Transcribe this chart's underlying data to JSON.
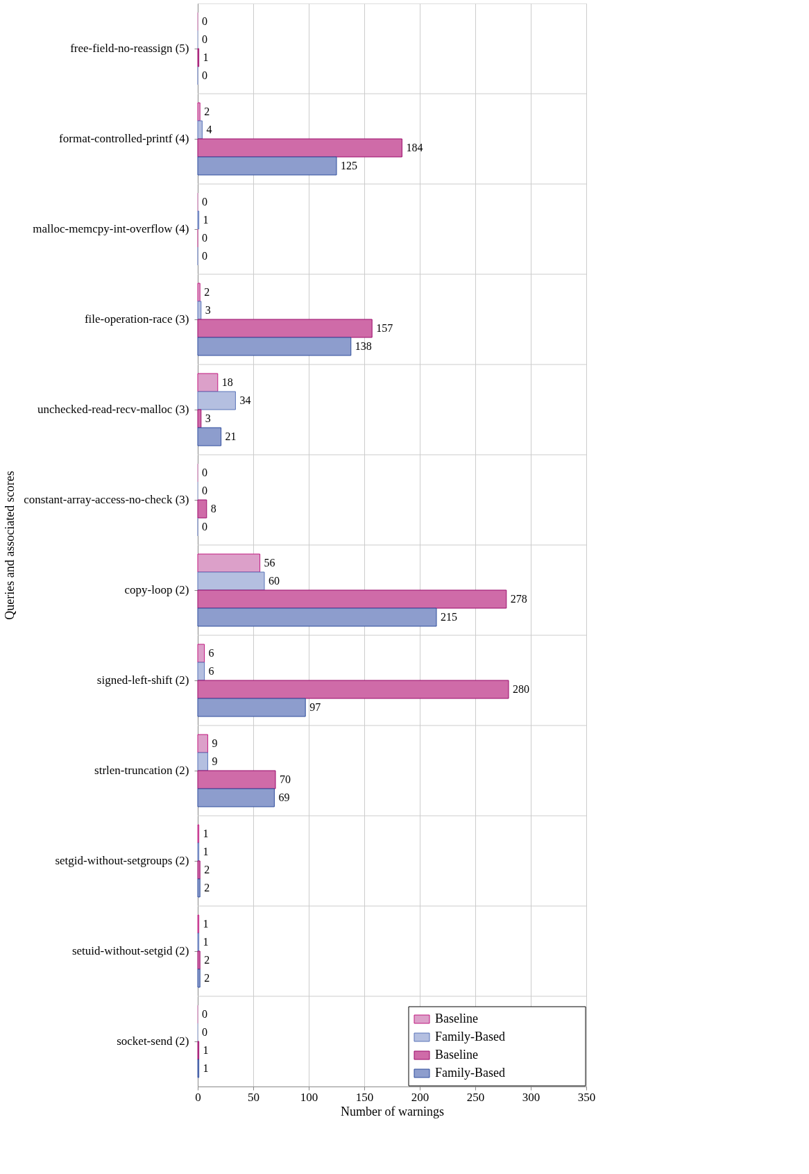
{
  "chart_data": {
    "type": "bar",
    "orientation": "horizontal",
    "xlabel": "Number of warnings",
    "ylabel": "Queries and associated scores",
    "categories": [
      "free-field-no-reassign (5)",
      "format-controlled-printf (4)",
      "malloc-memcpy-int-overflow (4)",
      "file-operation-race (3)",
      "unchecked-read-recv-malloc (3)",
      "constant-array-access-no-check (3)",
      "copy-loop (2)",
      "signed-left-shift (2)",
      "strlen-truncation (2)",
      "setgid-without-setgroups (2)",
      "setuid-without-setgid (2)",
      "socket-send (2)"
    ],
    "series": [
      {
        "name": "Baseline",
        "color": "#dca0c9",
        "values": [
          0,
          2,
          0,
          2,
          18,
          0,
          56,
          6,
          9,
          1,
          1,
          0
        ]
      },
      {
        "name": "Family-Based",
        "color": "#b4bfe0",
        "values": [
          0,
          4,
          1,
          3,
          34,
          0,
          60,
          6,
          9,
          1,
          1,
          0
        ]
      },
      {
        "name": "Baseline",
        "color": "#cf6ba8",
        "values": [
          1,
          184,
          0,
          157,
          3,
          8,
          278,
          280,
          70,
          2,
          2,
          1
        ]
      },
      {
        "name": "Family-Based",
        "color": "#8d9dcd",
        "values": [
          0,
          125,
          0,
          138,
          21,
          0,
          215,
          97,
          69,
          2,
          2,
          1
        ]
      }
    ],
    "xlim": [
      0,
      350
    ],
    "xticks": [
      0,
      50,
      100,
      150,
      200,
      250,
      300,
      350
    ],
    "grid": true,
    "legend": "bottom right",
    "data_labels": true
  }
}
